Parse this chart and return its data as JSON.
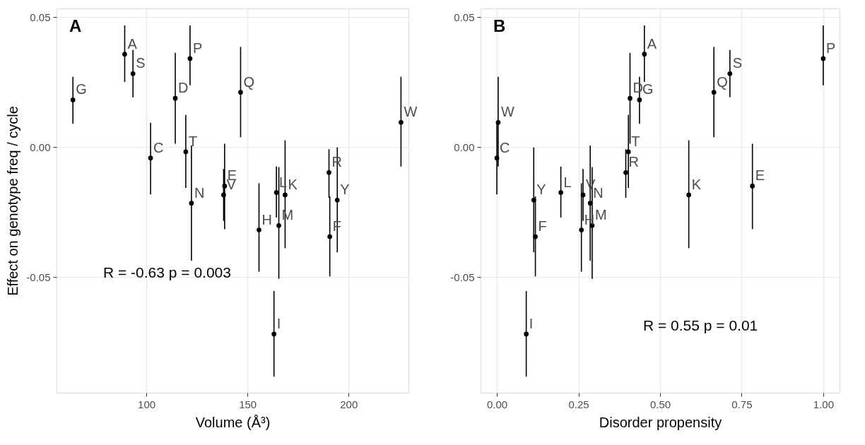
{
  "chart_data": [
    {
      "type": "scatter",
      "title": "A",
      "xlabel": "Volume (Å³)",
      "ylabel": "Effect on genotype freq / cycle",
      "marker": "circle",
      "grid": true,
      "xlim": [
        55.6,
        229.6
      ],
      "xticks": [
        100,
        150,
        200
      ],
      "ylim": [
        -0.0946,
        0.0534
      ],
      "yticks": [
        {
          "value": -0.05,
          "label": "-0.05"
        },
        {
          "value": 0,
          "label": "0.00"
        },
        {
          "value": 0.05,
          "label": "0.05"
        }
      ],
      "series": [
        {
          "color": "#000000",
          "x": [
            63.7,
            89.3,
            93.4,
            121.6,
            114.3,
            146.6,
            225.9,
            102.1,
            119.5,
            122.3,
            138.7,
            138.2,
            164.3,
            168.6,
            155.7,
            165.5,
            163.1,
            190.3,
            190.7,
            194.4
          ],
          "values": [
            0.0182,
            0.0358,
            0.0283,
            0.0341,
            0.0188,
            0.0211,
            0.0095,
            -0.0042,
            -0.0018,
            -0.0216,
            -0.015,
            -0.0184,
            -0.0175,
            -0.0184,
            -0.0319,
            -0.0302,
            -0.072,
            -0.0098,
            -0.0345,
            -0.0204
          ],
          "errors": [
            [
              0.009,
              0.0271
            ],
            [
              0.0251,
              0.0469
            ],
            [
              0.0192,
              0.0374
            ],
            [
              0.0238,
              0.0469
            ],
            [
              0.0013,
              0.0363
            ],
            [
              0.0038,
              0.0386
            ],
            [
              -0.0075,
              0.0271
            ],
            [
              -0.0182,
              0.0094
            ],
            [
              -0.0157,
              0.0124
            ],
            [
              -0.0437,
              0.0006
            ],
            [
              -0.0316,
              0.0013
            ],
            [
              -0.0284,
              -0.0084
            ],
            [
              -0.0271,
              -0.0075
            ],
            [
              -0.0389,
              0.0026
            ],
            [
              -0.048,
              -0.0139
            ],
            [
              -0.0507,
              -0.0077
            ],
            [
              -0.0884,
              -0.0554
            ],
            [
              -0.0195,
              -0.0008
            ],
            [
              -0.0498,
              -0.019
            ],
            [
              -0.0405,
              -0.0001
            ]
          ]
        }
      ],
      "annotations": [
        {
          "text": "G",
          "x": 63.7,
          "y": 0.0182
        },
        {
          "text": "A",
          "x": 89.3,
          "y": 0.0358
        },
        {
          "text": "S",
          "x": 93.4,
          "y": 0.0283
        },
        {
          "text": "P",
          "x": 121.6,
          "y": 0.0341
        },
        {
          "text": "D",
          "x": 114.3,
          "y": 0.0188
        },
        {
          "text": "Q",
          "x": 146.6,
          "y": 0.0211
        },
        {
          "text": "W",
          "x": 225.9,
          "y": 0.0095
        },
        {
          "text": "C",
          "x": 102.1,
          "y": -0.0042
        },
        {
          "text": "T",
          "x": 119.5,
          "y": -0.0018
        },
        {
          "text": "N",
          "x": 122.3,
          "y": -0.0216
        },
        {
          "text": "E",
          "x": 138.7,
          "y": -0.015
        },
        {
          "text": "V",
          "x": 138.2,
          "y": -0.0184
        },
        {
          "text": "L",
          "x": 164.3,
          "y": -0.0175
        },
        {
          "text": "K",
          "x": 168.6,
          "y": -0.0184
        },
        {
          "text": "H",
          "x": 155.7,
          "y": -0.0319
        },
        {
          "text": "M",
          "x": 165.5,
          "y": -0.0302
        },
        {
          "text": "I",
          "x": 163.1,
          "y": -0.072
        },
        {
          "text": "R",
          "x": 190.3,
          "y": -0.0098
        },
        {
          "text": "F",
          "x": 190.7,
          "y": -0.0345
        },
        {
          "text": "Y",
          "x": 194.4,
          "y": -0.0204
        },
        "R = -0.63 p = 0.003"
      ]
    },
    {
      "type": "scatter",
      "title": "B",
      "xlabel": "Disorder propensity",
      "marker": "circle",
      "grid": true,
      "xlim": [
        -0.05,
        1.05
      ],
      "xticks": [
        {
          "value": 0,
          "label": "0.00"
        },
        {
          "value": 0.25,
          "label": "0.25"
        },
        {
          "value": 0.5,
          "label": "0.50"
        },
        {
          "value": 0.75,
          "label": "0.75"
        },
        {
          "value": 1,
          "label": "1.00"
        }
      ],
      "ylim": [
        -0.0946,
        0.0534
      ],
      "yticks": [
        {
          "value": -0.05,
          "label": "-0.05"
        },
        {
          "value": 0,
          "label": "0.00"
        },
        {
          "value": 0.05,
          "label": "0.05"
        }
      ],
      "series": [
        {
          "color": "#000000",
          "x": [
            0.437,
            0.452,
            0.714,
            1.0,
            0.408,
            0.665,
            0.004,
            0.0,
            0.403,
            0.286,
            0.783,
            0.264,
            0.196,
            0.588,
            0.259,
            0.292,
            0.09,
            0.395,
            0.118,
            0.113
          ],
          "values": [
            0.0182,
            0.0358,
            0.0283,
            0.0341,
            0.0188,
            0.0211,
            0.0095,
            -0.0042,
            -0.0018,
            -0.0216,
            -0.015,
            -0.0184,
            -0.0175,
            -0.0184,
            -0.0319,
            -0.0302,
            -0.072,
            -0.0098,
            -0.0345,
            -0.0204
          ],
          "errors": [
            [
              0.009,
              0.0271
            ],
            [
              0.0251,
              0.0469
            ],
            [
              0.0192,
              0.0374
            ],
            [
              0.0238,
              0.0469
            ],
            [
              0.0013,
              0.0363
            ],
            [
              0.0038,
              0.0386
            ],
            [
              -0.0075,
              0.0271
            ],
            [
              -0.0182,
              0.0094
            ],
            [
              -0.0157,
              0.0124
            ],
            [
              -0.0437,
              0.0006
            ],
            [
              -0.0316,
              0.0013
            ],
            [
              -0.0284,
              -0.0084
            ],
            [
              -0.0271,
              -0.0075
            ],
            [
              -0.0389,
              0.0026
            ],
            [
              -0.048,
              -0.0139
            ],
            [
              -0.0507,
              -0.0077
            ],
            [
              -0.0884,
              -0.0554
            ],
            [
              -0.0195,
              -0.0008
            ],
            [
              -0.0498,
              -0.019
            ],
            [
              -0.0405,
              -0.0001
            ]
          ]
        }
      ],
      "annotations": [
        {
          "text": "G",
          "x": 0.437,
          "y": 0.0182
        },
        {
          "text": "A",
          "x": 0.452,
          "y": 0.0358
        },
        {
          "text": "S",
          "x": 0.714,
          "y": 0.0283
        },
        {
          "text": "P",
          "x": 1.0,
          "y": 0.0341
        },
        {
          "text": "D",
          "x": 0.408,
          "y": 0.0188
        },
        {
          "text": "Q",
          "x": 0.665,
          "y": 0.0211
        },
        {
          "text": "W",
          "x": 0.004,
          "y": 0.0095
        },
        {
          "text": "C",
          "x": 0.0,
          "y": -0.0042
        },
        {
          "text": "T",
          "x": 0.403,
          "y": -0.0018
        },
        {
          "text": "N",
          "x": 0.286,
          "y": -0.0216
        },
        {
          "text": "E",
          "x": 0.783,
          "y": -0.015
        },
        {
          "text": "V",
          "x": 0.264,
          "y": -0.0184
        },
        {
          "text": "L",
          "x": 0.196,
          "y": -0.0175
        },
        {
          "text": "K",
          "x": 0.588,
          "y": -0.0184
        },
        {
          "text": "H",
          "x": 0.259,
          "y": -0.0319
        },
        {
          "text": "M",
          "x": 0.292,
          "y": -0.0302
        },
        {
          "text": "I",
          "x": 0.09,
          "y": -0.072
        },
        {
          "text": "R",
          "x": 0.395,
          "y": -0.0098
        },
        {
          "text": "F",
          "x": 0.118,
          "y": -0.0345
        },
        {
          "text": "Y",
          "x": 0.113,
          "y": -0.0204
        },
        "R = 0.55 p = 0.01"
      ]
    }
  ]
}
